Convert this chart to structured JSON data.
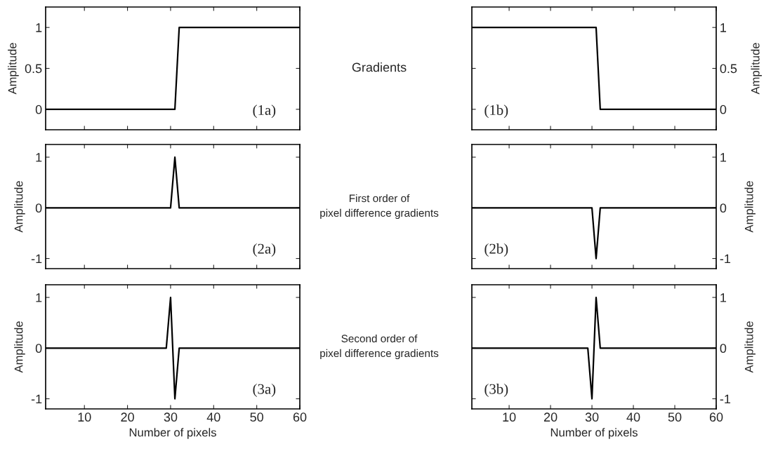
{
  "chart_data": [
    {
      "type": "line",
      "ylabel": "Amplitude",
      "xlim": [
        1,
        60
      ],
      "xticks": [
        10,
        20,
        30,
        40,
        50,
        60
      ],
      "ylim": [
        -0.25,
        1.25
      ],
      "yticks": [
        0,
        0.5,
        1
      ],
      "tick_labels": "y",
      "annotations": [
        "(1a)",
        "Gradients"
      ],
      "series": [
        {
          "color": "#000000",
          "x": [
            1,
            31,
            32,
            60
          ],
          "values": [
            0,
            0,
            1,
            1
          ]
        }
      ]
    },
    {
      "type": "line",
      "y2label": "Amplitude",
      "xlim": [
        1,
        60
      ],
      "xticks": [
        10,
        20,
        30,
        40,
        50,
        60
      ],
      "y2lim": [
        -0.25,
        1.25
      ],
      "y2ticks": [
        0,
        0.5,
        1
      ],
      "tick_labels": "y",
      "annotations": [
        "(1b)"
      ],
      "series": [
        {
          "color": "#000000",
          "axis": "y2",
          "x": [
            1,
            31,
            32,
            60
          ],
          "values": [
            1,
            1,
            0,
            0
          ]
        }
      ]
    },
    {
      "type": "line",
      "ylabel": "Amplitude",
      "xlim": [
        1,
        60
      ],
      "xticks": [
        10,
        20,
        30,
        40,
        50,
        60
      ],
      "ylim": [
        -1.2,
        1.25
      ],
      "yticks": [
        -1,
        0,
        1
      ],
      "tick_labels": "y",
      "annotations": [
        "(2a)",
        "First order of\npixel difference gradients"
      ],
      "series": [
        {
          "color": "#000000",
          "x": [
            1,
            30,
            31,
            32,
            60
          ],
          "values": [
            0,
            0,
            1,
            0,
            0
          ]
        }
      ]
    },
    {
      "type": "line",
      "y2label": "Amplitude",
      "xlim": [
        1,
        60
      ],
      "xticks": [
        10,
        20,
        30,
        40,
        50,
        60
      ],
      "y2lim": [
        -1.2,
        1.25
      ],
      "y2ticks": [
        -1,
        0,
        1
      ],
      "tick_labels": "y",
      "annotations": [
        "(2b)"
      ],
      "series": [
        {
          "color": "#000000",
          "axis": "y2",
          "x": [
            1,
            30,
            31,
            32,
            60
          ],
          "values": [
            0,
            0,
            -1,
            0,
            0
          ]
        }
      ]
    },
    {
      "type": "line",
      "xlabel": "Number of pixels",
      "ylabel": "Amplitude",
      "xlim": [
        1,
        60
      ],
      "xticks": [
        10,
        20,
        30,
        40,
        50,
        60
      ],
      "ylim": [
        -1.2,
        1.25
      ],
      "yticks": [
        -1,
        0,
        1
      ],
      "annotations": [
        "(3a)",
        "Second order of\npixel difference gradients"
      ],
      "series": [
        {
          "color": "#000000",
          "x": [
            1,
            29,
            30,
            31,
            32,
            60
          ],
          "values": [
            0,
            0,
            1,
            -1,
            0,
            0
          ]
        }
      ]
    },
    {
      "type": "line",
      "xlabel": "Number of pixels",
      "y2label": "Amplitude",
      "xlim": [
        1,
        60
      ],
      "xticks": [
        10,
        20,
        30,
        40,
        50,
        60
      ],
      "y2lim": [
        -1.2,
        1.25
      ],
      "y2ticks": [
        -1,
        0,
        1
      ],
      "annotations": [
        "(3b)"
      ],
      "series": [
        {
          "color": "#000000",
          "axis": "y2",
          "x": [
            1,
            29,
            30,
            31,
            32,
            60
          ],
          "values": [
            0,
            0,
            -1,
            1,
            0,
            0
          ]
        }
      ]
    }
  ]
}
